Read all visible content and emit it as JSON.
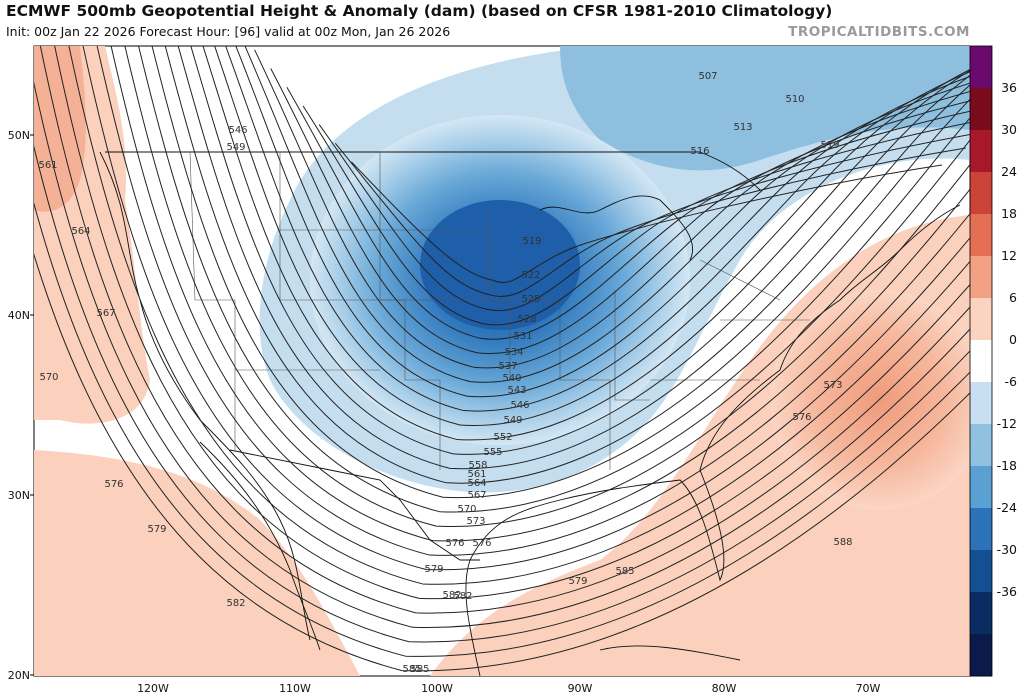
{
  "header": {
    "title": "ECMWF 500mb Geopotential Height & Anomaly (dam) (based on CFSR 1981-2010 Climatology)",
    "subtitle": "Init: 00z Jan 22 2026   Forecast Hour: [96]   valid at 00z Mon, Jan 26 2026",
    "brand": "TROPICALTIDBITS.COM"
  },
  "axes": {
    "lat_labels": [
      "50N",
      "40N",
      "30N",
      "20N"
    ],
    "lon_labels": [
      "120W",
      "110W",
      "100W",
      "90W",
      "80W",
      "70W"
    ]
  },
  "colorbar": {
    "labels": [
      "36",
      "30",
      "24",
      "18",
      "12",
      "6",
      "0",
      "-6",
      "-12",
      "-18",
      "-24",
      "-30",
      "-36"
    ],
    "colors": [
      "#6a0a6e",
      "#7a0b1c",
      "#a6182a",
      "#cc4437",
      "#e56f55",
      "#f2a184",
      "#fbd3bf",
      "#ffffff",
      "#c7dff0",
      "#90c1e1",
      "#5aa0d2",
      "#2c72b8",
      "#154f93",
      "#0b2c63",
      "#0a1a4a"
    ]
  },
  "contour_labels": [
    "507",
    "510",
    "513",
    "516",
    "519",
    "519",
    "522",
    "525",
    "528",
    "531",
    "534",
    "537",
    "540",
    "543",
    "546",
    "549",
    "552",
    "555",
    "558",
    "561",
    "564",
    "567",
    "570",
    "573",
    "576",
    "579",
    "582",
    "585",
    "546",
    "549",
    "561",
    "564",
    "567",
    "570",
    "576",
    "579",
    "582",
    "573",
    "576",
    "588",
    "585",
    "576",
    "579",
    "582",
    "585"
  ]
}
